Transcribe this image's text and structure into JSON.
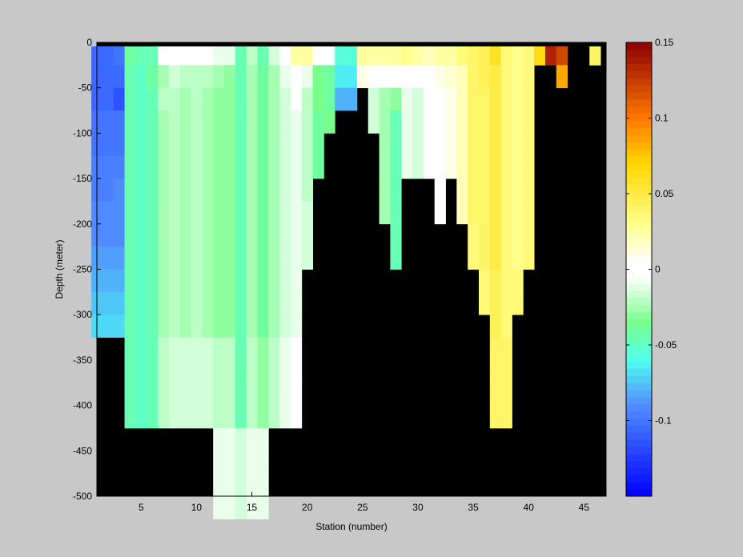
{
  "chart_data": {
    "type": "heatmap",
    "xlabel": "Station (number)",
    "ylabel": "Depth (meter)",
    "xlim": [
      1,
      47
    ],
    "ylim": [
      -500,
      0
    ],
    "x_ticks": [
      5,
      10,
      15,
      20,
      25,
      30,
      35,
      40,
      45
    ],
    "x_tick_labels": [
      "5",
      "10",
      "15",
      "20",
      "25",
      "30",
      "35",
      "40",
      "45"
    ],
    "y_ticks": [
      0,
      -50,
      -100,
      -150,
      -200,
      -250,
      -300,
      -350,
      -400,
      -450,
      -500
    ],
    "y_tick_labels": [
      "0",
      "-50",
      "-100",
      "-150",
      "-200",
      "-250",
      "-300",
      "-350",
      "-400",
      "-450",
      "-500"
    ],
    "colorbar": {
      "colormap": "jet-white-centered",
      "clim": [
        -0.15,
        0.15
      ],
      "ticks": [
        0.15,
        0.1,
        0.05,
        0,
        -0.05,
        -0.1
      ],
      "tick_labels": [
        "0.15",
        "0.1",
        "0.05",
        "0",
        "-0.05",
        "-0.1"
      ]
    },
    "no_data_color": "#000000",
    "depth_bin_m": 25,
    "stations": [
      {
        "station": 1,
        "max_depth": 300,
        "values": [
          -0.105,
          -0.105,
          -0.105,
          -0.1,
          -0.1,
          -0.095,
          -0.095,
          -0.09,
          -0.09,
          -0.085,
          -0.08,
          -0.075,
          -0.07
        ]
      },
      {
        "station": 2,
        "max_depth": 300,
        "values": [
          -0.105,
          -0.105,
          -0.105,
          -0.1,
          -0.1,
          -0.095,
          -0.095,
          -0.09,
          -0.09,
          -0.085,
          -0.08,
          -0.075,
          -0.07
        ]
      },
      {
        "station": 3,
        "max_depth": 300,
        "values": [
          -0.1,
          -0.105,
          -0.115,
          -0.1,
          -0.1,
          -0.095,
          -0.09,
          -0.09,
          -0.09,
          -0.085,
          -0.08,
          -0.075,
          -0.07
        ]
      },
      {
        "station": 4,
        "max_depth": 400,
        "values": [
          -0.04,
          -0.045,
          -0.045,
          -0.045,
          -0.045,
          -0.045,
          -0.045,
          -0.045,
          -0.045,
          -0.045,
          -0.045,
          -0.045,
          -0.045,
          -0.045,
          -0.045,
          -0.045,
          -0.045
        ]
      },
      {
        "station": 5,
        "max_depth": 400,
        "values": [
          -0.045,
          -0.05,
          -0.05,
          -0.05,
          -0.05,
          -0.05,
          -0.05,
          -0.05,
          -0.05,
          -0.05,
          -0.05,
          -0.05,
          -0.05,
          -0.05,
          -0.05,
          -0.05,
          -0.05
        ]
      },
      {
        "station": 6,
        "max_depth": 400,
        "values": [
          -0.045,
          -0.04,
          -0.045,
          -0.045,
          -0.045,
          -0.045,
          -0.045,
          -0.045,
          -0.045,
          -0.045,
          -0.045,
          -0.045,
          -0.045,
          -0.045,
          -0.045,
          -0.045,
          -0.045
        ]
      },
      {
        "station": 7,
        "max_depth": 400,
        "values": [
          -0.005,
          -0.025,
          -0.02,
          -0.025,
          -0.025,
          -0.025,
          -0.025,
          -0.025,
          -0.025,
          -0.025,
          -0.025,
          -0.025,
          -0.025,
          -0.02,
          -0.02,
          -0.02,
          -0.02
        ]
      },
      {
        "station": 8,
        "max_depth": 400,
        "values": [
          -0.005,
          -0.015,
          -0.02,
          -0.02,
          -0.02,
          -0.02,
          -0.02,
          -0.02,
          -0.02,
          -0.02,
          -0.02,
          -0.02,
          -0.02,
          -0.015,
          -0.015,
          -0.015,
          -0.015
        ]
      },
      {
        "station": 9,
        "max_depth": 400,
        "values": [
          -0.005,
          -0.02,
          -0.025,
          -0.025,
          -0.025,
          -0.025,
          -0.025,
          -0.025,
          -0.025,
          -0.025,
          -0.025,
          -0.025,
          -0.025,
          -0.015,
          -0.015,
          -0.015,
          -0.015
        ]
      },
      {
        "station": 10,
        "max_depth": 400,
        "values": [
          -0.005,
          -0.02,
          -0.02,
          -0.02,
          -0.02,
          -0.02,
          -0.02,
          -0.02,
          -0.02,
          -0.02,
          -0.02,
          -0.02,
          -0.02,
          -0.015,
          -0.015,
          -0.015,
          -0.015
        ]
      },
      {
        "station": 11,
        "max_depth": 400,
        "values": [
          -0.005,
          -0.02,
          -0.025,
          -0.025,
          -0.025,
          -0.025,
          -0.025,
          -0.025,
          -0.025,
          -0.025,
          -0.025,
          -0.025,
          -0.025,
          -0.015,
          -0.015,
          -0.015,
          -0.015
        ]
      },
      {
        "station": 12,
        "max_depth": 500,
        "values": [
          -0.01,
          -0.025,
          -0.03,
          -0.03,
          -0.03,
          -0.03,
          -0.03,
          -0.03,
          -0.03,
          -0.03,
          -0.03,
          -0.03,
          -0.03,
          -0.02,
          -0.02,
          -0.02,
          -0.02,
          -0.01,
          -0.01,
          -0.01,
          -0.01
        ]
      },
      {
        "station": 13,
        "max_depth": 500,
        "values": [
          -0.01,
          -0.03,
          -0.03,
          -0.03,
          -0.03,
          -0.03,
          -0.03,
          -0.03,
          -0.03,
          -0.03,
          -0.03,
          -0.03,
          -0.03,
          -0.02,
          -0.02,
          -0.02,
          -0.02,
          -0.01,
          -0.01,
          -0.01,
          -0.01
        ]
      },
      {
        "station": 14,
        "max_depth": 500,
        "values": [
          -0.045,
          -0.045,
          -0.045,
          -0.045,
          -0.045,
          -0.045,
          -0.045,
          -0.045,
          -0.045,
          -0.045,
          -0.045,
          -0.045,
          -0.045,
          -0.045,
          -0.045,
          -0.045,
          -0.045,
          -0.015,
          -0.015,
          -0.015,
          -0.015
        ]
      },
      {
        "station": 15,
        "max_depth": 500,
        "values": [
          -0.02,
          -0.025,
          -0.025,
          -0.025,
          -0.025,
          -0.025,
          -0.025,
          -0.025,
          -0.025,
          -0.025,
          -0.025,
          -0.025,
          -0.025,
          -0.02,
          -0.02,
          -0.02,
          -0.02,
          -0.01,
          -0.01,
          -0.01,
          -0.01
        ]
      },
      {
        "station": 16,
        "max_depth": 500,
        "values": [
          -0.045,
          -0.04,
          -0.04,
          -0.04,
          -0.04,
          -0.04,
          -0.04,
          -0.04,
          -0.04,
          -0.04,
          -0.04,
          -0.04,
          -0.04,
          -0.03,
          -0.03,
          -0.03,
          -0.03,
          -0.01,
          -0.01,
          -0.01,
          -0.01
        ]
      },
      {
        "station": 17,
        "max_depth": 400,
        "values": [
          -0.015,
          -0.025,
          -0.025,
          -0.025,
          -0.025,
          -0.025,
          -0.025,
          -0.025,
          -0.025,
          -0.025,
          -0.025,
          -0.025,
          -0.025,
          -0.02,
          -0.02,
          -0.02,
          -0.02
        ]
      },
      {
        "station": 18,
        "max_depth": 400,
        "values": [
          -0.005,
          -0.01,
          -0.015,
          -0.015,
          -0.015,
          -0.015,
          -0.015,
          -0.015,
          -0.015,
          -0.015,
          -0.015,
          -0.015,
          -0.015,
          -0.01,
          -0.01,
          -0.01,
          -0.01
        ]
      },
      {
        "station": 19,
        "max_depth": 400,
        "values": [
          0.025,
          0.0,
          -0.005,
          -0.01,
          -0.01,
          -0.01,
          -0.01,
          -0.01,
          -0.01,
          -0.01,
          -0.01,
          -0.01,
          -0.01,
          -0.005,
          -0.005,
          -0.005,
          -0.005
        ]
      },
      {
        "station": 20,
        "max_depth": 250,
        "values": [
          0.025,
          -0.01,
          -0.02,
          -0.02,
          -0.02,
          -0.02,
          -0.02,
          -0.015,
          -0.015,
          -0.015
        ]
      },
      {
        "station": 21,
        "max_depth": 150,
        "values": [
          0.005,
          -0.035,
          -0.035,
          -0.04,
          -0.04,
          -0.04
        ]
      },
      {
        "station": 22,
        "max_depth": 100,
        "values": [
          0.005,
          -0.04,
          -0.04,
          -0.035
        ]
      },
      {
        "station": 23,
        "max_depth": 75,
        "values": [
          -0.055,
          -0.065,
          -0.08
        ]
      },
      {
        "station": 24,
        "max_depth": 75,
        "values": [
          -0.055,
          -0.065,
          -0.08
        ]
      },
      {
        "station": 25,
        "max_depth": 50,
        "values": [
          0.025,
          0.01
        ]
      },
      {
        "station": 26,
        "max_depth": 100,
        "values": [
          0.025,
          0.005,
          -0.015,
          -0.015
        ]
      },
      {
        "station": 27,
        "max_depth": 200,
        "values": [
          0.025,
          0.005,
          -0.025,
          -0.025,
          -0.025,
          -0.025,
          -0.025,
          -0.025
        ]
      },
      {
        "station": 28,
        "max_depth": 250,
        "values": [
          0.025,
          0.005,
          -0.03,
          -0.045,
          -0.045,
          -0.045,
          -0.045,
          -0.045,
          -0.045,
          -0.045
        ]
      },
      {
        "station": 29,
        "max_depth": 150,
        "values": [
          0.03,
          0.005,
          -0.01,
          -0.01,
          -0.01,
          -0.01
        ]
      },
      {
        "station": 30,
        "max_depth": 150,
        "values": [
          0.025,
          0.005,
          -0.015,
          -0.015,
          -0.015,
          -0.015
        ]
      },
      {
        "station": 31,
        "max_depth": 150,
        "values": [
          0.02,
          0.005,
          -0.005,
          -0.005,
          -0.005,
          -0.005
        ]
      },
      {
        "station": 32,
        "max_depth": 200,
        "values": [
          0.025,
          0.01,
          0.005,
          0.005,
          0.005,
          0.005,
          0.005,
          0.005
        ]
      },
      {
        "station": 33,
        "max_depth": 150,
        "values": [
          0.025,
          0.015,
          0.01,
          0.01,
          0.01,
          0.01
        ]
      },
      {
        "station": 34,
        "max_depth": 200,
        "values": [
          0.035,
          0.02,
          0.02,
          0.02,
          0.02,
          0.02,
          0.02,
          0.02
        ]
      },
      {
        "station": 35,
        "max_depth": 250,
        "values": [
          0.04,
          0.04,
          0.04,
          0.04,
          0.04,
          0.04,
          0.04,
          0.04,
          0.035,
          0.035
        ]
      },
      {
        "station": 36,
        "max_depth": 300,
        "values": [
          0.045,
          0.045,
          0.04,
          0.04,
          0.04,
          0.04,
          0.04,
          0.04,
          0.04,
          0.04,
          0.035,
          0.035
        ]
      },
      {
        "station": 37,
        "max_depth": 400,
        "values": [
          0.06,
          0.05,
          0.05,
          0.05,
          0.05,
          0.05,
          0.05,
          0.05,
          0.05,
          0.05,
          0.045,
          0.045,
          0.045,
          0.04,
          0.04,
          0.04,
          0.04
        ]
      },
      {
        "station": 38,
        "max_depth": 400,
        "values": [
          0.035,
          0.035,
          0.035,
          0.035,
          0.035,
          0.035,
          0.035,
          0.035,
          0.035,
          0.035,
          0.035,
          0.035,
          0.035,
          0.04,
          0.04,
          0.04,
          0.04
        ]
      },
      {
        "station": 39,
        "max_depth": 300,
        "values": [
          0.03,
          0.03,
          0.03,
          0.03,
          0.03,
          0.03,
          0.03,
          0.03,
          0.03,
          0.03,
          0.035,
          0.035
        ]
      },
      {
        "station": 40,
        "max_depth": 250,
        "values": [
          0.035,
          0.035,
          0.035,
          0.035,
          0.035,
          0.035,
          0.035,
          0.035,
          0.035,
          0.035
        ]
      },
      {
        "station": 41,
        "max_depth": 25,
        "values": [
          0.065
        ]
      },
      {
        "station": 42,
        "max_depth": 25,
        "values": [
          0.135
        ]
      },
      {
        "station": 43,
        "max_depth": 50,
        "values": [
          0.12,
          0.085
        ]
      },
      {
        "station": 44,
        "max_depth": 0,
        "values": []
      },
      {
        "station": 45,
        "max_depth": 0,
        "values": []
      },
      {
        "station": 46,
        "max_depth": 25,
        "values": [
          0.04
        ]
      }
    ]
  }
}
